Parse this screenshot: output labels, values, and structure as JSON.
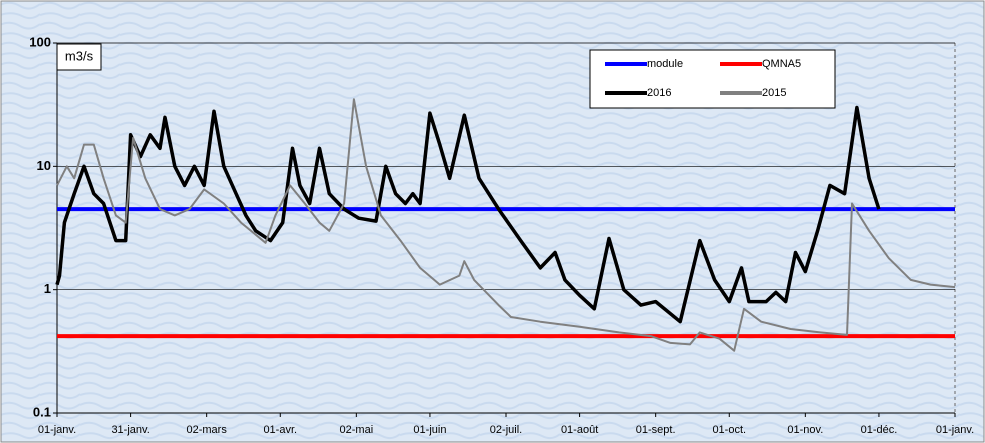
{
  "chart_data": {
    "type": "line",
    "y_label": "m3/s",
    "log_scale": true,
    "grid": true,
    "xlim": [
      0,
      366
    ],
    "xticks": [
      {
        "value": 0,
        "label": "01-janv."
      },
      {
        "value": 30,
        "label": "31-janv."
      },
      {
        "value": 61,
        "label": "02-mars"
      },
      {
        "value": 91,
        "label": "01-avr."
      },
      {
        "value": 122,
        "label": "02-mai"
      },
      {
        "value": 152,
        "label": "01-juin"
      },
      {
        "value": 183,
        "label": "02-juil."
      },
      {
        "value": 213,
        "label": "01-août"
      },
      {
        "value": 244,
        "label": "01-sept."
      },
      {
        "value": 274,
        "label": "01-oct."
      },
      {
        "value": 305,
        "label": "01-nov."
      },
      {
        "value": 335,
        "label": "01-déc."
      },
      {
        "value": 366,
        "label": "01-janv."
      }
    ],
    "ylim": [
      0.1,
      100
    ],
    "yticks": [
      0.1,
      1,
      10,
      100
    ],
    "series": [
      {
        "name": "module",
        "color": "#0000ff",
        "width": 4,
        "x": [
          0,
          366
        ],
        "values": [
          4.5,
          4.5
        ]
      },
      {
        "name": "QMNA5",
        "color": "#ff0000",
        "width": 4,
        "x": [
          0,
          366
        ],
        "values": [
          0.42,
          0.42
        ]
      },
      {
        "name": "2016",
        "color": "#000000",
        "width": 3.5,
        "x": [
          0,
          1,
          3,
          7,
          11,
          15,
          19,
          24,
          28,
          30,
          34,
          38,
          42,
          44,
          48,
          52,
          56,
          60,
          64,
          68,
          73,
          77,
          81,
          87,
          92,
          96,
          99,
          103,
          107,
          111,
          117,
          123,
          130,
          134,
          138,
          142,
          145,
          148,
          152,
          156,
          160,
          166,
          172,
          180,
          189,
          197,
          203,
          207,
          213,
          219,
          225,
          231,
          238,
          244,
          254,
          262,
          268,
          274,
          279,
          282,
          289,
          293,
          297,
          301,
          305,
          310,
          315,
          321,
          326,
          331,
          335
        ],
        "values": [
          1.1,
          1.3,
          3.5,
          6,
          10,
          6,
          5,
          2.5,
          2.5,
          18,
          12,
          18,
          14,
          25,
          10,
          7,
          10,
          7,
          28,
          10,
          6,
          4,
          3,
          2.5,
          3.5,
          14,
          7,
          5,
          14,
          6,
          4.5,
          3.8,
          3.6,
          10,
          6,
          5,
          6,
          5,
          27,
          15,
          8,
          26,
          8,
          4.5,
          2.5,
          1.5,
          2,
          1.2,
          0.9,
          0.7,
          2.6,
          1,
          0.75,
          0.8,
          0.55,
          2.5,
          1.2,
          0.8,
          1.5,
          0.8,
          0.8,
          0.95,
          0.8,
          2,
          1.4,
          3,
          7,
          6,
          30,
          8,
          4.5
        ]
      },
      {
        "name": "2015",
        "color": "#808080",
        "width": 2,
        "x": [
          0,
          4,
          7,
          11,
          15,
          19,
          24,
          28,
          31,
          36,
          42,
          48,
          54,
          60,
          68,
          75,
          85,
          89,
          95,
          101,
          107,
          111,
          117,
          121,
          126,
          132,
          140,
          148,
          156,
          164,
          166,
          170,
          180,
          185,
          197,
          213,
          229,
          242,
          250,
          258,
          262,
          270,
          276,
          280,
          287,
          299,
          311,
          322,
          324,
          331,
          339,
          348,
          356,
          366
        ],
        "values": [
          7,
          10,
          8,
          15,
          15,
          8,
          4,
          3.5,
          17,
          8,
          4.5,
          4,
          4.5,
          6.5,
          5,
          3.5,
          2.4,
          4,
          7,
          5,
          3.5,
          3,
          5,
          35,
          10,
          4,
          2.5,
          1.5,
          1.1,
          1.3,
          1.7,
          1.2,
          0.75,
          0.6,
          0.55,
          0.5,
          0.45,
          0.42,
          0.37,
          0.36,
          0.45,
          0.4,
          0.32,
          0.7,
          0.55,
          0.48,
          0.45,
          0.43,
          5,
          3,
          1.8,
          1.2,
          1.1,
          1.05
        ]
      }
    ]
  }
}
